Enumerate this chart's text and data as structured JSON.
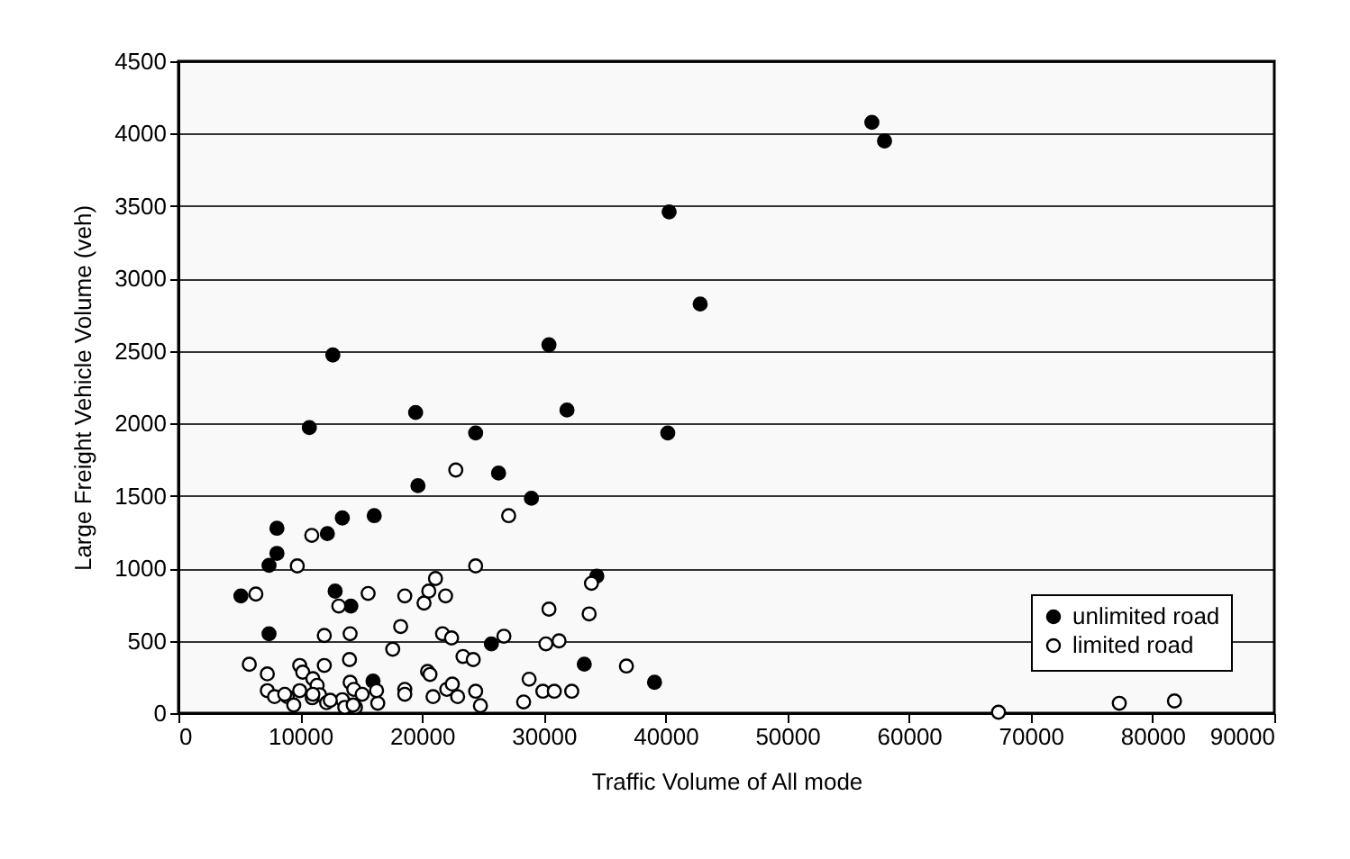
{
  "chart_data": {
    "type": "scatter",
    "xlabel": "Traffic Volume of All mode",
    "ylabel": "Large Freight Vehicle Volume (veh)",
    "xlim": [
      0,
      90000
    ],
    "xticks": [
      0,
      10000,
      20000,
      30000,
      40000,
      50000,
      60000,
      70000,
      80000,
      90000
    ],
    "ylim": [
      0,
      4500
    ],
    "yticks": [
      0,
      500,
      1000,
      1500,
      2000,
      2500,
      3000,
      3500,
      4000,
      4500
    ],
    "grid": "y",
    "legend": "bottom right",
    "marker": "circle",
    "series": [
      {
        "name": "unlimited road",
        "color": "#000000",
        "x": [
          5130,
          7440,
          7440,
          8090,
          8090,
          10750,
          12680,
          12230,
          13460,
          12870,
          14160,
          16080,
          15980,
          19480,
          19670,
          24410,
          26290,
          30430,
          31910,
          28990,
          25700,
          33330,
          34360,
          42850,
          40190,
          39100,
          56950,
          57990,
          40300
        ],
        "values": [
          809,
          548,
          1020,
          1103,
          1276,
          1971,
          2472,
          1239,
          1347,
          842,
          739,
          1363,
          221,
          2075,
          1570,
          1934,
          1657,
          2542,
          2092,
          1483,
          478,
          338,
          946,
          2824,
          1934,
          213,
          4078,
          3950,
          3460
        ]
      },
      {
        "name": "limited road",
        "color": "#ffffff",
        "x": [
          6360,
          9760,
          10950,
          5820,
          7300,
          7300,
          7890,
          8930,
          9960,
          9960,
          10210,
          11040,
          11390,
          11590,
          10990,
          9470,
          11980,
          11980,
          12170,
          13170,
          14100,
          14050,
          14100,
          14400,
          13460,
          13660,
          14540,
          15090,
          15580,
          16370,
          16270,
          17600,
          18250,
          18590,
          18590,
          18590,
          20170,
          20560,
          21110,
          21940,
          20460,
          20660,
          20910,
          21690,
          22430,
          22040,
          22490,
          22930,
          22780,
          23370,
          24210,
          24410,
          24410,
          24800,
          27120,
          26730,
          28800,
          28350,
          29930,
          30870,
          32300,
          30430,
          30180,
          31260,
          33730,
          33920,
          36790,
          14350,
          8730,
          11040,
          12470,
          67350,
          77270,
          81800
        ],
        "values": [
          822,
          1016,
          1227,
          337,
          271,
          155,
          114,
          114,
          155,
          329,
          283,
          238,
          192,
          127,
          106,
          56,
          329,
          536,
          72,
          739,
          548,
          370,
          213,
          164,
          93,
          40,
          40,
          130,
          826,
          68,
          155,
          441,
          598,
          809,
          164,
          130,
          760,
          842,
          929,
          809,
          288,
          267,
          114,
          548,
          519,
          164,
          201,
          114,
          1678,
          391,
          370,
          1016,
          151,
          52,
          1363,
          531,
          234,
          77,
          151,
          151,
          151,
          718,
          478,
          499,
          685,
          896,
          325,
          56,
          130,
          130,
          89,
          6,
          68,
          84
        ]
      }
    ]
  }
}
